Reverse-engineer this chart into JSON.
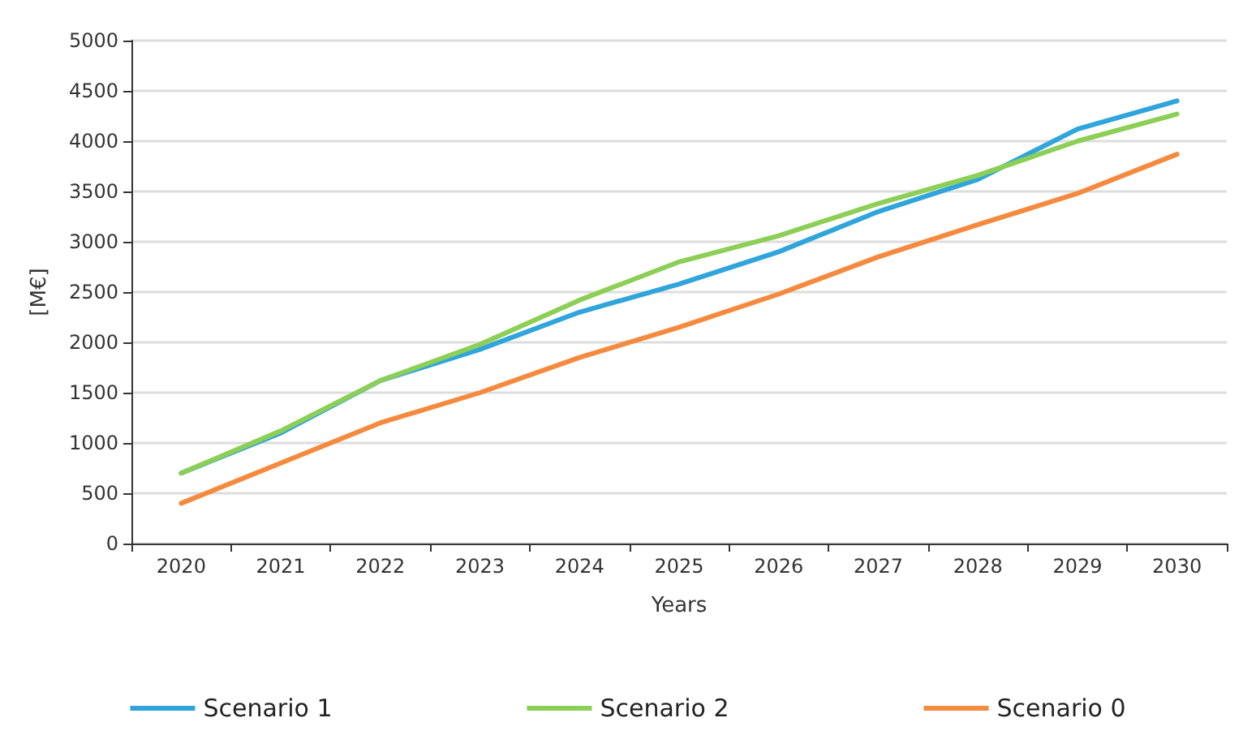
{
  "chart_data": {
    "type": "line",
    "xlabel": "Years",
    "ylabel": "[M€]",
    "categories": [
      "2020",
      "2021",
      "2022",
      "2023",
      "2024",
      "2025",
      "2026",
      "2027",
      "2028",
      "2029",
      "2030"
    ],
    "series": [
      {
        "name": "Scenario 1",
        "color": "#2fa5dc",
        "values": [
          700,
          1100,
          1620,
          1930,
          2300,
          2580,
          2900,
          3300,
          3620,
          4120,
          4400
        ]
      },
      {
        "name": "Scenario 2",
        "color": "#8ccf57",
        "values": [
          700,
          1120,
          1620,
          1980,
          2420,
          2800,
          3060,
          3380,
          3660,
          4000,
          4270
        ]
      },
      {
        "name": "Scenario 0",
        "color": "#f58a3e",
        "values": [
          400,
          800,
          1200,
          1500,
          1850,
          2150,
          2480,
          2850,
          3170,
          3480,
          3870
        ]
      }
    ],
    "ylim": [
      0,
      5000
    ],
    "yticks": [
      0,
      500,
      1000,
      1500,
      2000,
      2500,
      3000,
      3500,
      4000,
      4500,
      5000
    ],
    "grid": "y",
    "legend": "bottom",
    "marker": "none",
    "line_style": "solid"
  }
}
